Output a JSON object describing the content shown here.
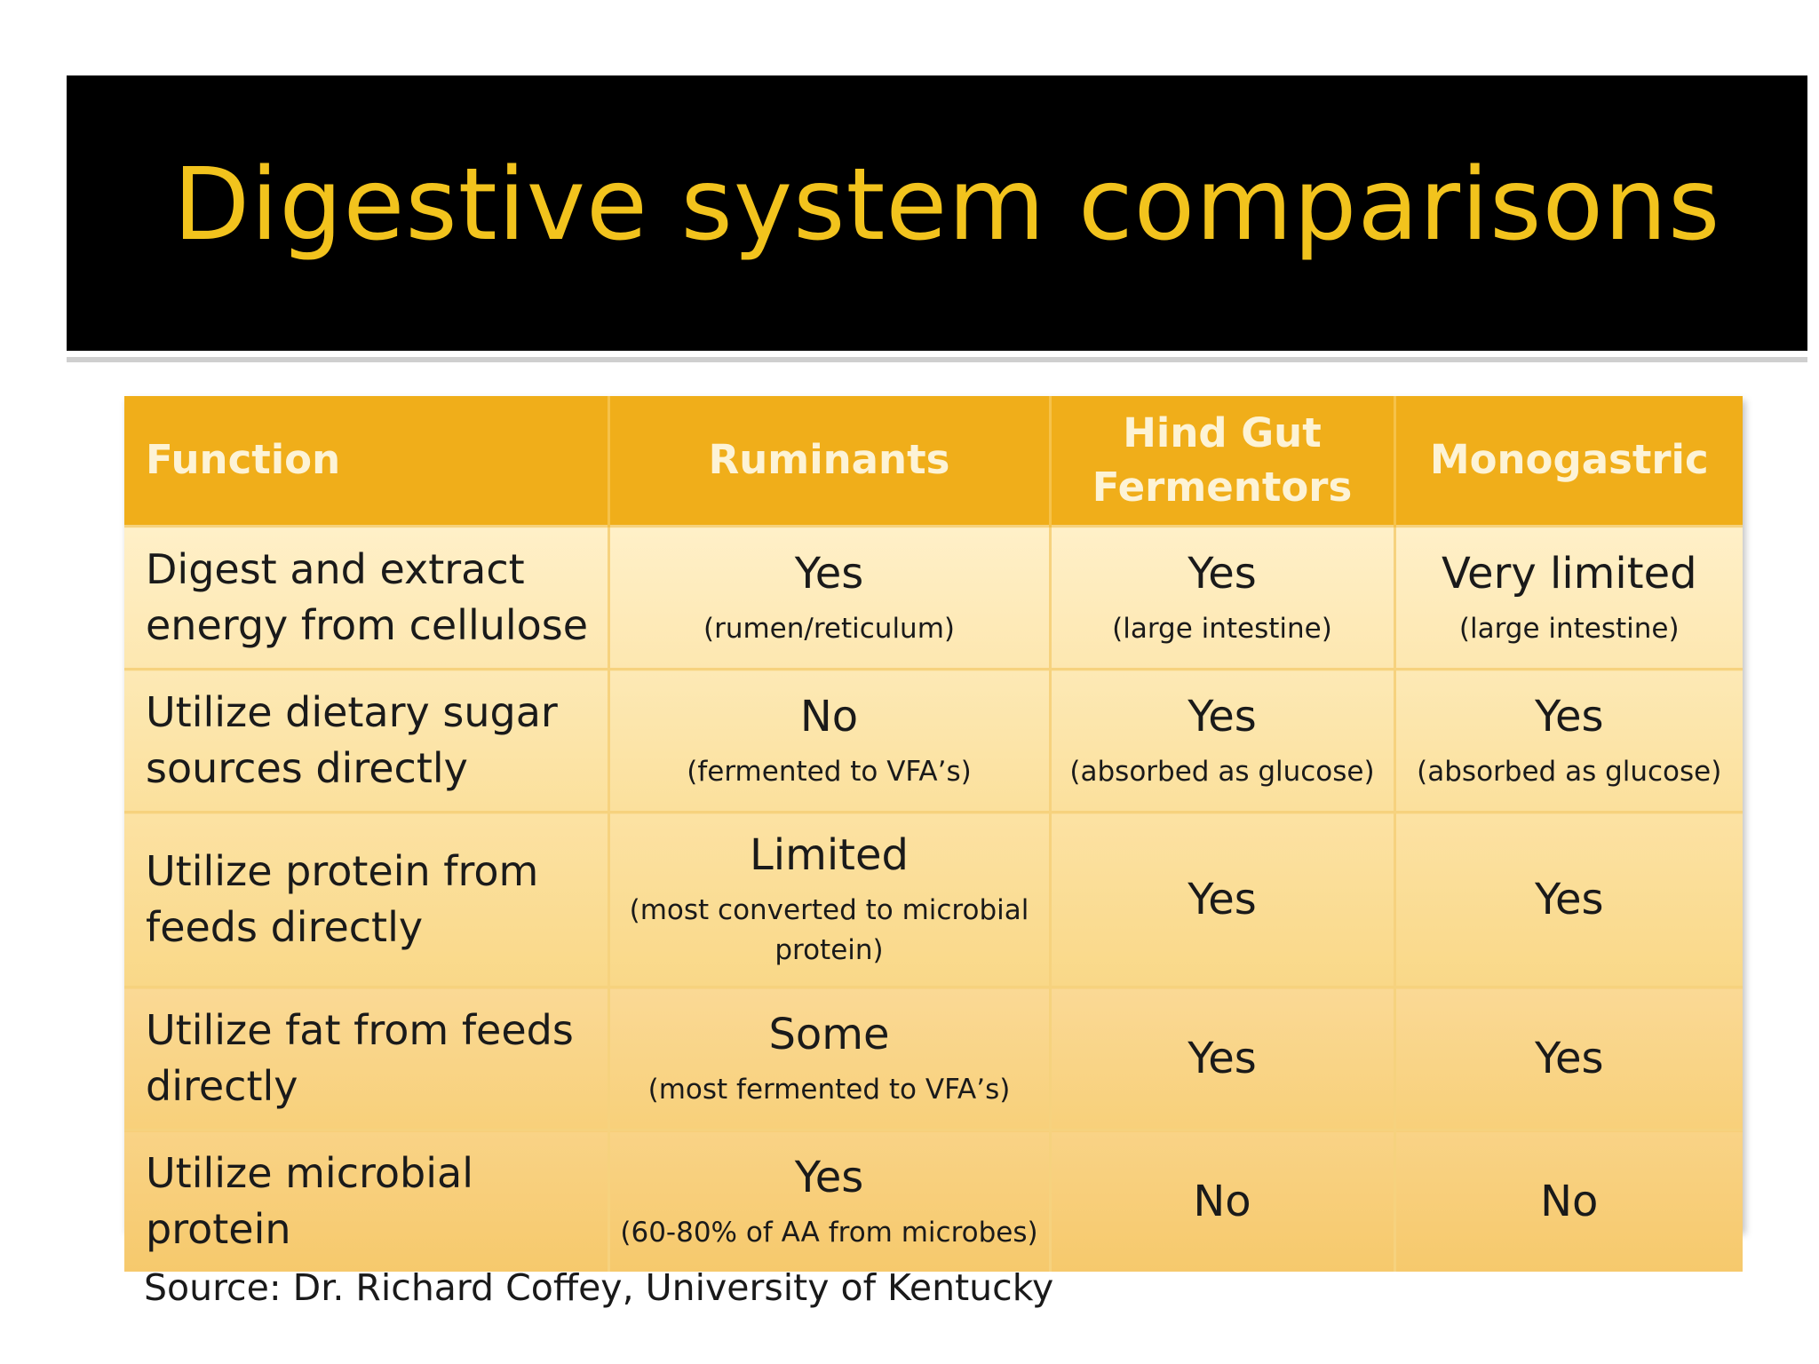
{
  "title": "Digestive system comparisons",
  "table": {
    "headers": [
      "Function",
      "Ruminants",
      "Hind Gut\nFermentors",
      "Monogastric"
    ],
    "rows": [
      {
        "function": "Digest and extract energy from cellulose",
        "ruminants": {
          "main": "Yes",
          "sub": "(rumen/reticulum)"
        },
        "hind_gut": {
          "main": "Yes",
          "sub": "(large intestine)"
        },
        "monogastric": {
          "main": "Very limited",
          "sub": "(large intestine)"
        }
      },
      {
        "function": "Utilize dietary sugar sources directly",
        "ruminants": {
          "main": "No",
          "sub": "(fermented to VFA’s)"
        },
        "hind_gut": {
          "main": "Yes",
          "sub": "(absorbed as glucose)"
        },
        "monogastric": {
          "main": "Yes",
          "sub": "(absorbed as glucose)"
        }
      },
      {
        "function": "Utilize protein from feeds directly",
        "ruminants": {
          "main": "Limited",
          "sub": "(most converted to microbial protein)"
        },
        "hind_gut": {
          "main": "Yes",
          "sub": ""
        },
        "monogastric": {
          "main": "Yes",
          "sub": ""
        }
      },
      {
        "function": "Utilize fat from feeds directly",
        "ruminants": {
          "main": "Some",
          "sub": "(most fermented to VFA’s)"
        },
        "hind_gut": {
          "main": "Yes",
          "sub": ""
        },
        "monogastric": {
          "main": "Yes",
          "sub": ""
        }
      },
      {
        "function": "Utilize microbial protein",
        "ruminants": {
          "main": "Yes",
          "sub": "(60-80% of AA from microbes)"
        },
        "hind_gut": {
          "main": "No",
          "sub": ""
        },
        "monogastric": {
          "main": "No",
          "sub": ""
        }
      }
    ]
  },
  "source": "Source: Dr. Richard Coffey, University of Kentucky",
  "colors": {
    "title_bar_background": "#000000",
    "title_text": "#f2c31d",
    "header_background": "#f0ae1a",
    "header_text": "#fdf3d6",
    "row_background_light": "#fff0c8",
    "row_background_dark": "#f6c96c"
  }
}
